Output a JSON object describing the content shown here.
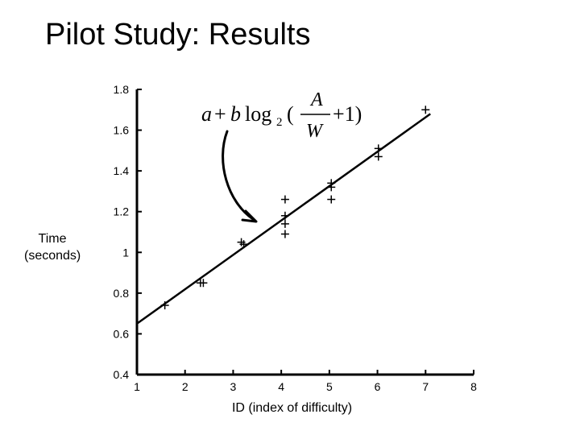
{
  "slide": {
    "title": "Pilot Study: Results"
  },
  "chart_data": {
    "type": "scatter",
    "title": "",
    "xlabel": "ID (index of difficulty)",
    "ylabel": "Time (seconds)",
    "ylabel_lines": [
      "Time",
      "(seconds)"
    ],
    "xlim": [
      1,
      8
    ],
    "ylim": [
      0.4,
      1.8
    ],
    "xticks": [
      1,
      2,
      3,
      4,
      5,
      6,
      7,
      8
    ],
    "yticks": [
      0.4,
      0.6,
      0.8,
      1,
      1.2,
      1.4,
      1.6,
      1.8
    ],
    "ytick_labels": [
      "0.4",
      "0.6",
      "0.8",
      "1",
      "1.2",
      "1.4",
      "1.6",
      "1.8"
    ],
    "grid": false,
    "marker": "+",
    "points": [
      {
        "x": 1.58,
        "y": 0.74
      },
      {
        "x": 2.32,
        "y": 0.85
      },
      {
        "x": 2.38,
        "y": 0.85
      },
      {
        "x": 3.17,
        "y": 1.05
      },
      {
        "x": 3.22,
        "y": 1.04
      },
      {
        "x": 4.08,
        "y": 1.26
      },
      {
        "x": 4.08,
        "y": 1.18
      },
      {
        "x": 4.08,
        "y": 1.14
      },
      {
        "x": 4.08,
        "y": 1.09
      },
      {
        "x": 5.04,
        "y": 1.34
      },
      {
        "x": 5.04,
        "y": 1.32
      },
      {
        "x": 5.04,
        "y": 1.26
      },
      {
        "x": 6.02,
        "y": 1.51
      },
      {
        "x": 6.02,
        "y": 1.47
      },
      {
        "x": 7.0,
        "y": 1.7
      }
    ],
    "fit_line": {
      "x": [
        1,
        7.1
      ],
      "y": [
        0.65,
        1.68
      ]
    },
    "annotation": {
      "formula": "a + b log2(A/W + 1)",
      "arrow_target": {
        "x": 3.5,
        "y": 1.16
      }
    }
  }
}
